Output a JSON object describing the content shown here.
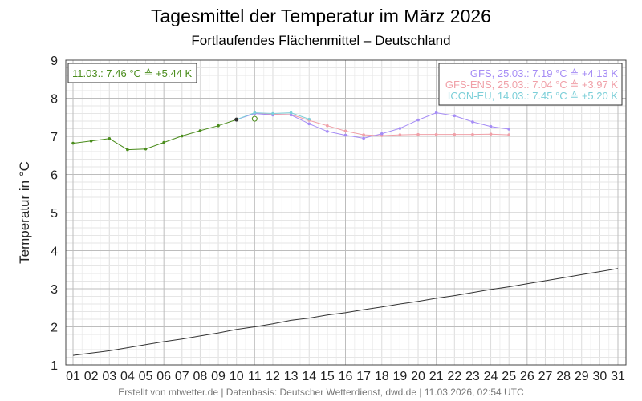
{
  "header": {
    "title": "Tagesmittel der Temperatur im März 2026",
    "subtitle": "Fortlaufendes Flächenmittel – Deutschland"
  },
  "footer": {
    "credit": "Erstellt von mtwetter.de | Datenbasis: Deutscher Wetterdienst, dwd.de | 11.03.2026, 02:54 UTC"
  },
  "chart_data": {
    "type": "line",
    "title": "Tagesmittel der Temperatur im März 2026",
    "subtitle": "Fortlaufendes Flächenmittel – Deutschland",
    "xlabel": "",
    "ylabel": "Temperatur in °C",
    "xlim": [
      1,
      31
    ],
    "ylim": [
      1,
      9
    ],
    "x_ticks": [
      "01",
      "02",
      "03",
      "04",
      "05",
      "06",
      "07",
      "08",
      "09",
      "10",
      "11",
      "12",
      "13",
      "14",
      "15",
      "16",
      "17",
      "18",
      "19",
      "20",
      "21",
      "22",
      "23",
      "24",
      "25",
      "26",
      "27",
      "28",
      "29",
      "30",
      "31"
    ],
    "y_ticks": [
      1,
      2,
      3,
      4,
      5,
      6,
      7,
      8,
      9
    ],
    "grid": true,
    "legend_position": "top-right",
    "annotation": "11.03.: 7.46 °C ≙ +5.44 K",
    "annotation_color": "#4a8c1c",
    "highlight_point": {
      "x": 11,
      "y": 7.46
    },
    "series": [
      {
        "id": "observed",
        "color": "#4a8c1c",
        "x": [
          1,
          2,
          3,
          4,
          5,
          6,
          7,
          8,
          9,
          10
        ],
        "values": [
          6.82,
          6.88,
          6.94,
          6.65,
          6.67,
          6.84,
          7.01,
          7.15,
          7.28,
          7.44
        ]
      },
      {
        "id": "climate",
        "color": "#333333",
        "x": [
          1,
          2,
          3,
          4,
          5,
          6,
          7,
          8,
          9,
          10,
          11,
          12,
          13,
          14,
          15,
          16,
          17,
          18,
          19,
          20,
          21,
          22,
          23,
          24,
          25,
          26,
          27,
          28,
          29,
          30,
          31
        ],
        "values": [
          1.25,
          1.31,
          1.37,
          1.45,
          1.53,
          1.61,
          1.68,
          1.76,
          1.84,
          1.93,
          2.0,
          2.08,
          2.17,
          2.23,
          2.31,
          2.37,
          2.45,
          2.52,
          2.6,
          2.67,
          2.75,
          2.82,
          2.9,
          2.98,
          3.05,
          3.13,
          3.21,
          3.29,
          3.37,
          3.45,
          3.53
        ]
      },
      {
        "id": "gfs-ens",
        "name": "GFS-ENS",
        "label": "GFS-ENS, 25.03.: 7.04 °C ≙ +3.97 K",
        "color": "#f0a0a8",
        "x": [
          11,
          12,
          13,
          14,
          15,
          16,
          17,
          18,
          19,
          20,
          21,
          22,
          23,
          24,
          25
        ],
        "values": [
          7.6,
          7.58,
          7.57,
          7.42,
          7.28,
          7.14,
          7.04,
          7.02,
          7.04,
          7.05,
          7.05,
          7.05,
          7.05,
          7.06,
          7.04
        ]
      },
      {
        "id": "gfs",
        "name": "GFS",
        "label": "GFS, 25.03.: 7.19 °C ≙ +4.13 K",
        "color": "#a58cf5",
        "x": [
          10,
          11,
          12,
          13,
          14,
          15,
          16,
          17,
          18,
          19,
          20,
          21,
          22,
          23,
          24,
          25
        ],
        "values": [
          7.44,
          7.6,
          7.56,
          7.56,
          7.33,
          7.13,
          7.03,
          6.95,
          7.07,
          7.21,
          7.43,
          7.62,
          7.54,
          7.38,
          7.26,
          7.19
        ]
      },
      {
        "id": "icon-eu",
        "name": "ICON-EU",
        "label": "ICON-EU, 14.03.: 7.45 °C ≙ +5.20 K",
        "color": "#7ccfd8",
        "x": [
          10,
          11,
          12,
          13,
          14
        ],
        "values": [
          7.44,
          7.62,
          7.6,
          7.62,
          7.45
        ]
      }
    ]
  }
}
